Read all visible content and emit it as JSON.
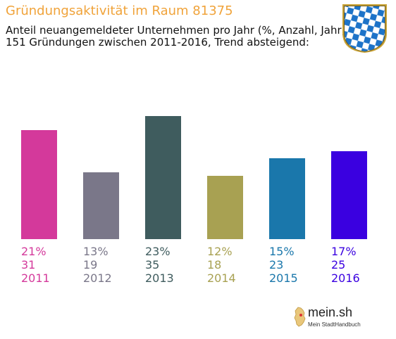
{
  "header": {
    "title": "Gründungsaktivität im Raum 81375",
    "subtitle_line1": "Anteil neuangemeldeter Unternehmen pro Jahr (%, Anzahl, Jahr)",
    "subtitle_line2": "151 Gründungen zwischen 2011-2016, Trend absteigend:"
  },
  "logo": {
    "text": "mein.sh",
    "tagline": "Mein StadtHandbuch"
  },
  "chart_data": {
    "type": "bar",
    "title": "Gründungsaktivität im Raum 81375",
    "categories": [
      "2011",
      "2012",
      "2013",
      "2014",
      "2015",
      "2016"
    ],
    "percent_labels": [
      "21%",
      "13%",
      "23%",
      "12%",
      "15%",
      "17%"
    ],
    "count_labels": [
      "31",
      "19",
      "35",
      "18",
      "23",
      "25"
    ],
    "values": [
      31,
      19,
      35,
      18,
      23,
      25
    ],
    "colors": [
      "#d4399b",
      "#7a7789",
      "#3f5c5e",
      "#a8a152",
      "#1a77ab",
      "#3a00e0"
    ],
    "ylim": [
      0,
      40
    ],
    "grid": false,
    "legend": "none"
  }
}
